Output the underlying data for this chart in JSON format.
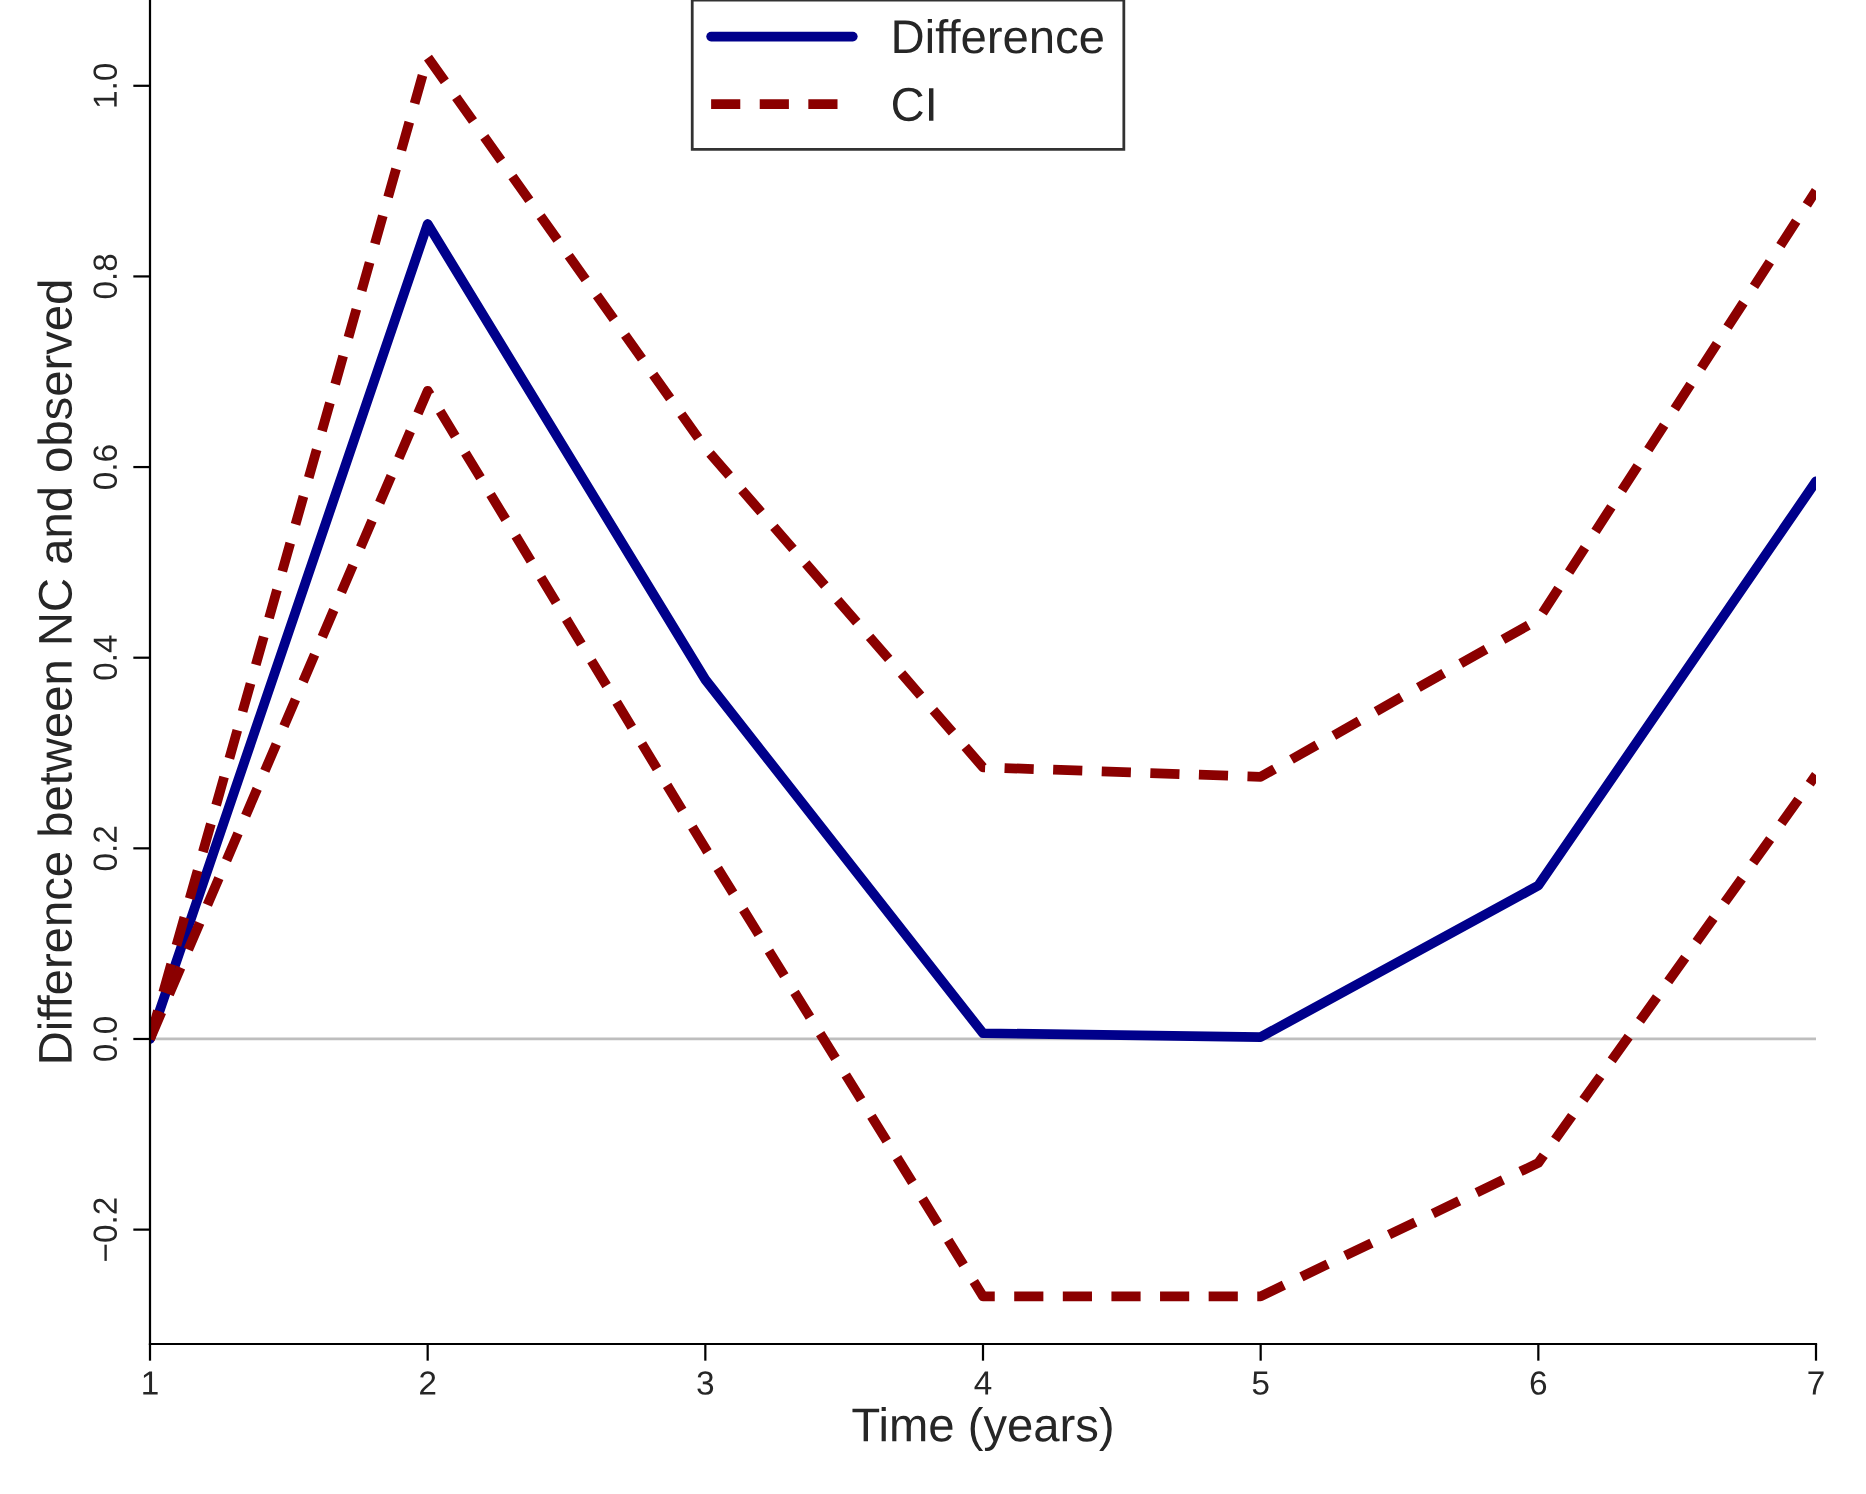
{
  "chart_data": {
    "type": "line",
    "xlabel": "Time (years)",
    "ylabel": "Difference between NC and observed",
    "x": [
      1,
      2,
      3,
      4,
      5,
      6,
      7
    ],
    "series": [
      {
        "name": "Difference",
        "color": "#00008b",
        "line_style": "solid",
        "values": [
          0,
          0.855,
          0.377,
          0.006,
          0.002,
          0.161,
          0.585
        ]
      },
      {
        "name": "CI",
        "color": "#8b0000",
        "line_style": "dashed",
        "values": [
          0,
          1.03,
          0.62,
          0.285,
          0.275,
          0.44,
          0.89
        ]
      },
      {
        "color": "#8b0000",
        "line_style": "dashed",
        "values": [
          0,
          0.68,
          0.2,
          -0.27,
          -0.27,
          -0.13,
          0.277
        ]
      }
    ],
    "xlim": [
      1,
      7
    ],
    "xticks": [
      1,
      2,
      3,
      4,
      5,
      6,
      7
    ],
    "ylim": [
      -0.32,
      1.09
    ],
    "yticks": [
      {
        "value": -0.2,
        "label": "−0.2"
      },
      {
        "value": 0,
        "label": "0.0"
      },
      {
        "value": 0.2,
        "label": "0.2"
      },
      {
        "value": 0.4,
        "label": "0.4"
      },
      {
        "value": 0.6,
        "label": "0.6"
      },
      {
        "value": 0.8,
        "label": "0.8"
      },
      {
        "value": 1.0,
        "label": "1.0"
      }
    ],
    "ref_lines": [
      {
        "axis": "y",
        "value": 0,
        "color": "#bebebe"
      }
    ],
    "grid": false,
    "legend": "top",
    "marker": "none"
  }
}
